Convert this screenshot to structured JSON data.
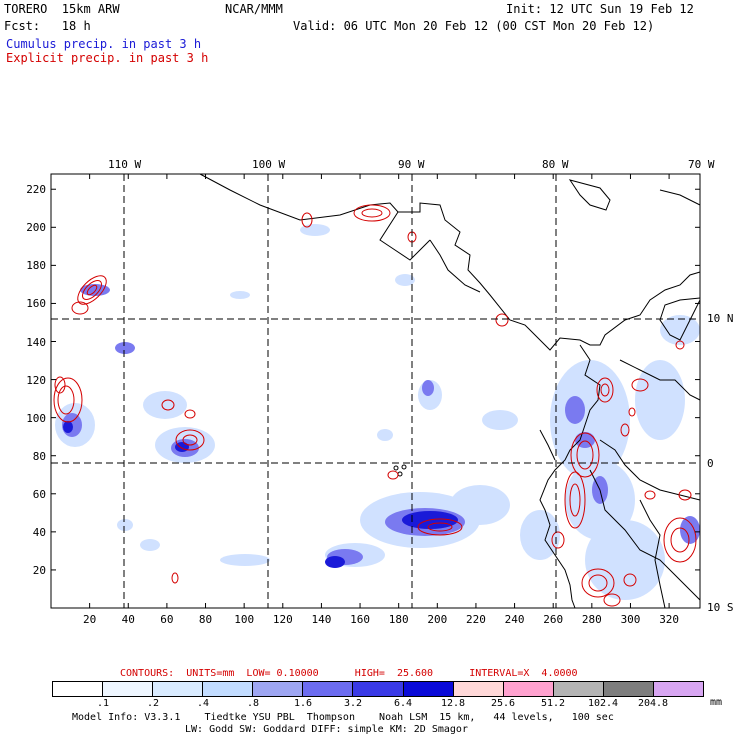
{
  "header": {
    "model": "TORERO  15km ARW",
    "org": "NCAR/MMM",
    "init": "Init: 12 UTC Sun 19 Feb 12",
    "fcst": "Fcst:   18 h",
    "valid": "Valid: 06 UTC Mon 20 Feb 12 (00 CST Mon 20 Feb 12)",
    "cumulus": "Cumulus precip. in past 3 h",
    "explicit": "Explicit precip. in past 3 h"
  },
  "map": {
    "lon_labels": [
      "110 W",
      "100 W",
      "90 W",
      "80 W",
      "70 W"
    ],
    "lat_labels": [
      "10 N",
      "0",
      "10 S"
    ],
    "x_ticks": [
      "20",
      "40",
      "60",
      "80",
      "100",
      "120",
      "140",
      "160",
      "180",
      "200",
      "220",
      "240",
      "260",
      "280",
      "300",
      "320"
    ],
    "y_ticks": [
      "20",
      "40",
      "60",
      "80",
      "100",
      "120",
      "140",
      "160",
      "180",
      "200",
      "220"
    ]
  },
  "contours": {
    "text": "CONTOURS:  UNITS=mm  LOW= 0.10000      HIGH=  25.600      INTERVAL=X  4.0000"
  },
  "colorbar": {
    "colors": [
      "#ffffff",
      "#eef6ff",
      "#d9ebff",
      "#c2dcff",
      "#9ea6f2",
      "#6c6cf0",
      "#3a3ae6",
      "#0a0ad8",
      "#ffd8d8",
      "#ffa2cf",
      "#b4b4b4",
      "#7e7e7e",
      "#d8a6f2"
    ],
    "labels": [
      ".1",
      ".2",
      ".4",
      ".8",
      "1.6",
      "3.2",
      "6.4",
      "12.8",
      "25.6",
      "51.2",
      "102.4",
      "204.8"
    ],
    "unit": "mm"
  },
  "footer": {
    "line1": "Model Info: V3.3.1    Tiedtke YSU PBL  Thompson    Noah LSM  15 km,   44 levels,   100 sec",
    "line2": "LW: Godd SW: Goddard DIFF: simple KM: 2D Smagor"
  }
}
